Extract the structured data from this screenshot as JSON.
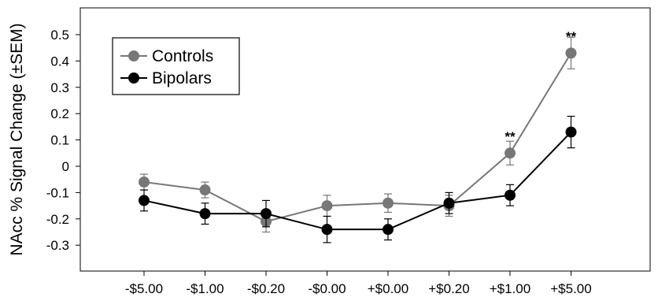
{
  "chart_data": {
    "type": "line",
    "title": "",
    "xlabel": "",
    "ylabel": "NAcc % Signal Change (±SEM)",
    "categories": [
      "-$5.00",
      "-$1.00",
      "-$0.20",
      "-$0.00",
      "+$0.00",
      "+$0.20",
      "+$1.00",
      "+$5.00"
    ],
    "yticks": [
      "0.5",
      "0.4",
      "0.3",
      "0.2",
      "0.1",
      "0",
      "-0.1",
      "-0.2",
      "-0.3"
    ],
    "ylim": [
      -0.4,
      0.5
    ],
    "grid": false,
    "legend_position": "top-left",
    "series": [
      {
        "name": "Controls",
        "color": "#777777",
        "values": [
          -0.06,
          -0.09,
          -0.21,
          -0.15,
          -0.14,
          -0.15,
          0.05,
          0.43
        ],
        "sem": [
          0.03,
          0.03,
          0.04,
          0.04,
          0.035,
          0.04,
          0.045,
          0.06
        ]
      },
      {
        "name": "Bipolars",
        "color": "#000000",
        "values": [
          -0.13,
          -0.18,
          -0.18,
          -0.24,
          -0.24,
          -0.14,
          -0.11,
          0.13
        ],
        "sem": [
          0.04,
          0.04,
          0.05,
          0.05,
          0.04,
          0.04,
          0.04,
          0.06
        ]
      }
    ],
    "annotations": [
      {
        "category": "+$1.00",
        "value": 0.12,
        "text": "**"
      },
      {
        "category": "+$5.00",
        "value": 0.5,
        "text": "**"
      }
    ]
  }
}
